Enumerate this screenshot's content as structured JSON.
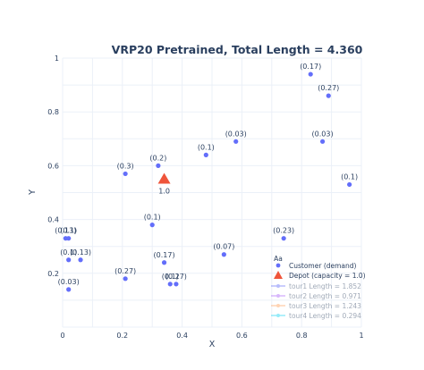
{
  "chart_data": {
    "type": "scatter",
    "title": "VRP20 Pretrained, Total Length = 4.360",
    "xlabel": "X",
    "ylabel": "Y",
    "xlim": [
      0,
      1
    ],
    "ylim": [
      0,
      1
    ],
    "xticks": [
      "0",
      "0.2",
      "0.4",
      "0.6",
      "0.8",
      "1"
    ],
    "yticks": [
      "0.2",
      "0.4",
      "0.6",
      "0.8",
      "1"
    ],
    "grid": true,
    "legend_position": "bottom-right",
    "colors": {
      "customer": "#636efa",
      "depot": "#ef553b",
      "tour1": "#636efa",
      "tour2": "#ab63fa",
      "tour3": "#ffa15a",
      "tour4": "#19d3f3"
    },
    "depot": {
      "x": 0.34,
      "y": 0.55,
      "label": "1.0",
      "name": "Depot (capacity = 1.0)"
    },
    "customers": {
      "name": "Customer (demand)",
      "points": [
        {
          "x": 0.83,
          "y": 0.94,
          "label": "(0.17)"
        },
        {
          "x": 0.89,
          "y": 0.86,
          "label": "(0.27)"
        },
        {
          "x": 0.58,
          "y": 0.69,
          "label": "(0.03)"
        },
        {
          "x": 0.87,
          "y": 0.69,
          "label": "(0.03)"
        },
        {
          "x": 0.48,
          "y": 0.64,
          "label": "(0.1)"
        },
        {
          "x": 0.32,
          "y": 0.6,
          "label": "(0.2)"
        },
        {
          "x": 0.21,
          "y": 0.57,
          "label": "(0.3)"
        },
        {
          "x": 0.96,
          "y": 0.53,
          "label": "(0.1)"
        },
        {
          "x": 0.3,
          "y": 0.38,
          "label": "(0.1)"
        },
        {
          "x": 0.01,
          "y": 0.33,
          "label": "(0.13)"
        },
        {
          "x": 0.02,
          "y": 0.33,
          "label": "(0.1)"
        },
        {
          "x": 0.74,
          "y": 0.33,
          "label": "(0.23)"
        },
        {
          "x": 0.54,
          "y": 0.27,
          "label": "(0.07)"
        },
        {
          "x": 0.02,
          "y": 0.25,
          "label": "(0.1)"
        },
        {
          "x": 0.06,
          "y": 0.25,
          "label": "(0.13)"
        },
        {
          "x": 0.34,
          "y": 0.24,
          "label": "(0.17)"
        },
        {
          "x": 0.21,
          "y": 0.18,
          "label": "(0.27)"
        },
        {
          "x": 0.36,
          "y": 0.16,
          "label": "(0.1)"
        },
        {
          "x": 0.38,
          "y": 0.16,
          "label": "(0.27)"
        },
        {
          "x": 0.02,
          "y": 0.14,
          "label": "(0.03)"
        }
      ]
    },
    "series": [
      {
        "name": "tour1 Length = 1.852"
      },
      {
        "name": "tour2 Length = 0.971"
      },
      {
        "name": "tour3 Length = 1.243"
      },
      {
        "name": "tour4 Length = 0.294"
      }
    ],
    "legend_symbol_text": "Aa"
  }
}
